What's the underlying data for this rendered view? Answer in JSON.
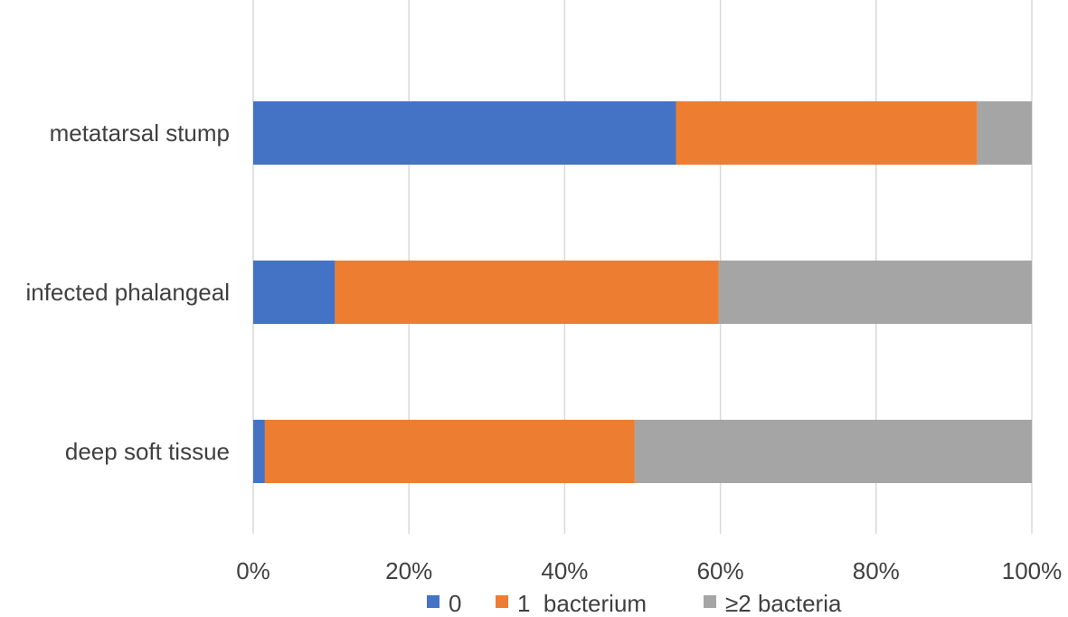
{
  "chart_data": {
    "type": "bar",
    "orientation": "horizontal",
    "stacked": true,
    "normalized_percent": true,
    "categories": [
      "metatarsal stump",
      "infected phalangeal",
      "deep soft tissue"
    ],
    "series": [
      {
        "name": "0",
        "color": "#4472C4",
        "values": [
          54.3,
          10.5,
          1.5
        ]
      },
      {
        "name": "1  bacterium",
        "color": "#ED7D31",
        "values": [
          38.7,
          49.3,
          47.5
        ]
      },
      {
        "name": "≥2 bacteria",
        "color": "#A5A5A5",
        "values": [
          7.0,
          40.2,
          51.0
        ]
      }
    ],
    "xlim": [
      0,
      100
    ],
    "x_ticks": [
      "0%",
      "20%",
      "40%",
      "60%",
      "80%",
      "100%"
    ],
    "grid": true,
    "legend_position": "bottom",
    "title": "",
    "xlabel": "",
    "ylabel": ""
  }
}
